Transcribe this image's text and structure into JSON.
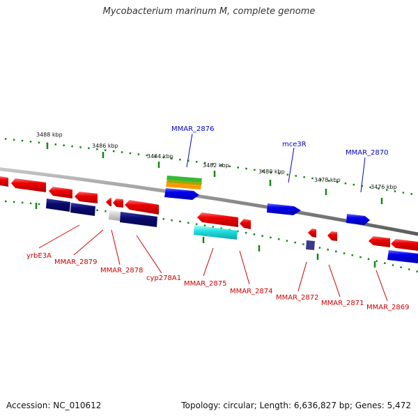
{
  "title": "Mycobacterium marinum M, complete genome",
  "footer": {
    "accession": "Accession: NC_010612",
    "summary": "Topology: circular; Length: 6,636,827 bp; Genes: 5,472"
  },
  "colors": {
    "backbone": "#8a8a8a",
    "gene_red": "#ee0000",
    "gene_blue": "#0000ee",
    "gene_navy": "#0a0a6e",
    "gene_cyan": "#22e0e0",
    "gene_green": "#33bb33",
    "gene_orange": "#ff9900",
    "gene_grey": "#bdbdbd",
    "gene_purple": "#3a3a8a",
    "tick": "#118811",
    "label_blue": "#0000cc",
    "label_red": "#cc0000"
  },
  "kbp_labels": [
    "3488 kbp",
    "3486 kbp",
    "3484 kbp",
    "3482 kbp",
    "3480 kbp",
    "3478 kbp",
    "3476 kbp"
  ],
  "gene_labels": {
    "top": [
      "MMAR_2876",
      "mce3R",
      "MMAR_2870"
    ],
    "bottom": [
      "yrbE3A",
      "MMAR_2879",
      "MMAR_2878",
      "cyp278A1",
      "MMAR_2875",
      "MMAR_2874",
      "MMAR_2872",
      "MMAR_2871",
      "MMAR_2869"
    ]
  }
}
